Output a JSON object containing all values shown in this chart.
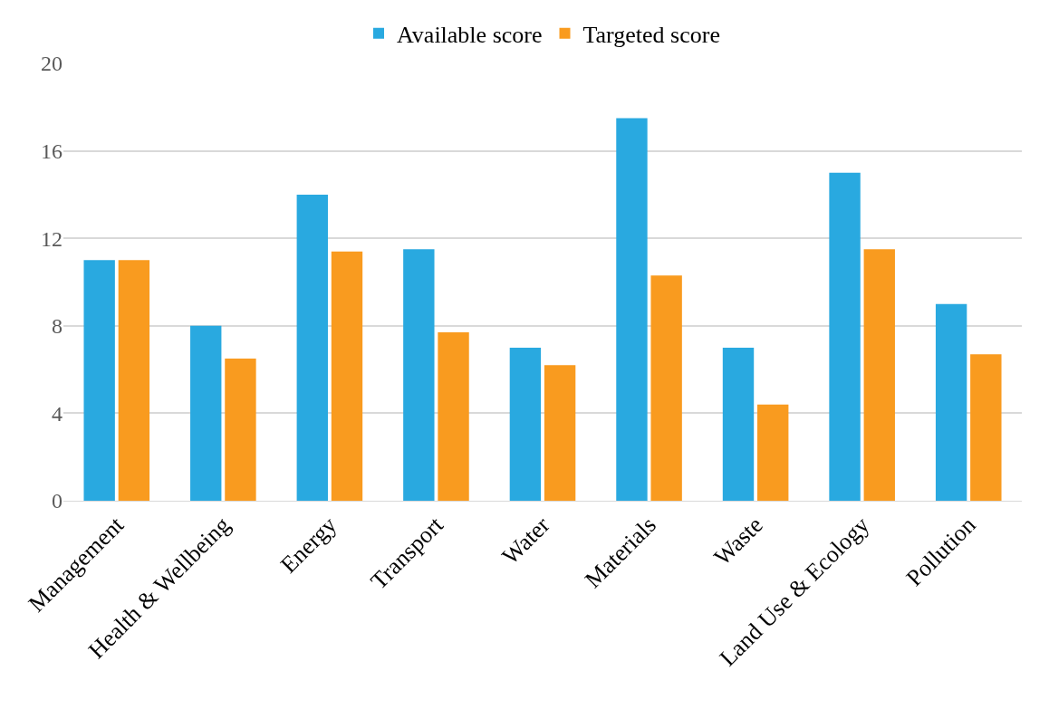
{
  "chart_data": {
    "type": "bar",
    "categories": [
      "Management",
      "Health & Wellbeing",
      "Energy",
      "Transport",
      "Water",
      "Materials",
      "Waste",
      "Land Use & Ecology",
      "Pollution"
    ],
    "series": [
      {
        "name": "Available score",
        "color": "#29a9e0",
        "values": [
          11,
          8,
          14,
          11.5,
          7,
          17.5,
          7,
          15,
          9
        ]
      },
      {
        "name": "Targeted score",
        "color": "#f99b1f",
        "values": [
          11,
          6.5,
          11.4,
          7.7,
          6.2,
          10.3,
          4.4,
          11.5,
          6.7
        ]
      }
    ],
    "ylim": [
      0,
      20
    ],
    "yticks": [
      0,
      4,
      8,
      12,
      16,
      20
    ],
    "grid": "y",
    "legend": "top"
  }
}
